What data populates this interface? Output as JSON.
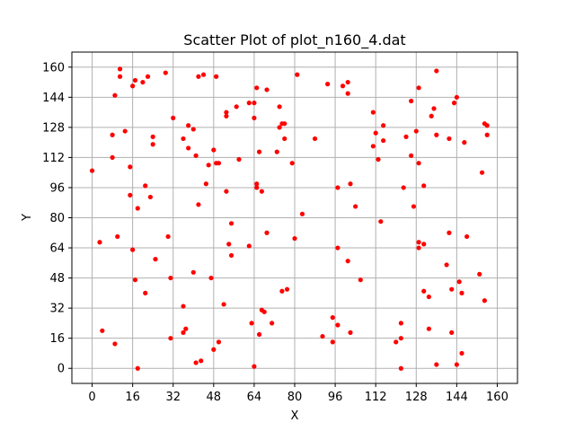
{
  "chart_data": {
    "type": "scatter",
    "title": "Scatter Plot of plot_n160_4.dat",
    "xlabel": "X",
    "ylabel": "Y",
    "xlim": [
      -8,
      168
    ],
    "ylim": [
      -8,
      168
    ],
    "xticks": [
      0,
      16,
      32,
      48,
      64,
      80,
      96,
      112,
      128,
      144,
      160
    ],
    "yticks": [
      0,
      16,
      32,
      48,
      64,
      80,
      96,
      112,
      128,
      144,
      160
    ],
    "grid": true,
    "marker_color": "#ff0000",
    "points": [
      [
        0,
        105
      ],
      [
        3,
        67
      ],
      [
        4,
        20
      ],
      [
        9,
        13
      ],
      [
        8,
        112
      ],
      [
        8,
        124
      ],
      [
        9,
        145
      ],
      [
        10,
        70
      ],
      [
        11,
        155
      ],
      [
        11,
        159
      ],
      [
        13,
        126
      ],
      [
        15,
        107
      ],
      [
        15,
        92
      ],
      [
        16,
        63
      ],
      [
        16,
        150
      ],
      [
        17,
        47
      ],
      [
        17,
        153
      ],
      [
        18,
        0
      ],
      [
        18,
        85
      ],
      [
        20,
        152
      ],
      [
        21,
        97
      ],
      [
        21,
        40
      ],
      [
        22,
        155
      ],
      [
        23,
        91
      ],
      [
        24,
        119
      ],
      [
        24,
        123
      ],
      [
        25,
        58
      ],
      [
        29,
        157
      ],
      [
        30,
        70
      ],
      [
        31,
        48
      ],
      [
        31,
        16
      ],
      [
        32,
        133
      ],
      [
        36,
        122
      ],
      [
        36,
        33
      ],
      [
        36,
        19
      ],
      [
        37,
        21
      ],
      [
        38,
        129
      ],
      [
        38,
        117
      ],
      [
        40,
        51
      ],
      [
        40,
        127
      ],
      [
        41,
        113
      ],
      [
        41,
        3
      ],
      [
        42,
        87
      ],
      [
        42,
        155
      ],
      [
        43,
        4
      ],
      [
        44,
        156
      ],
      [
        45,
        98
      ],
      [
        46,
        108
      ],
      [
        47,
        48
      ],
      [
        48,
        10
      ],
      [
        48,
        116
      ],
      [
        49,
        155
      ],
      [
        49,
        109
      ],
      [
        50,
        109
      ],
      [
        50,
        14
      ],
      [
        52,
        34
      ],
      [
        53,
        94
      ],
      [
        53,
        134
      ],
      [
        53,
        136
      ],
      [
        54,
        66
      ],
      [
        55,
        60
      ],
      [
        55,
        77
      ],
      [
        57,
        139
      ],
      [
        58,
        111
      ],
      [
        62,
        65
      ],
      [
        62,
        141
      ],
      [
        63,
        24
      ],
      [
        64,
        133
      ],
      [
        64,
        141
      ],
      [
        64,
        1
      ],
      [
        65,
        98
      ],
      [
        65,
        149
      ],
      [
        65,
        96
      ],
      [
        66,
        115
      ],
      [
        66,
        18
      ],
      [
        67,
        94
      ],
      [
        67,
        31
      ],
      [
        68,
        30
      ],
      [
        69,
        148
      ],
      [
        69,
        72
      ],
      [
        71,
        24
      ],
      [
        73,
        115
      ],
      [
        74,
        139
      ],
      [
        74,
        128
      ],
      [
        75,
        130
      ],
      [
        75,
        41
      ],
      [
        76,
        122
      ],
      [
        76,
        130
      ],
      [
        77,
        42
      ],
      [
        79,
        109
      ],
      [
        80,
        69
      ],
      [
        81,
        156
      ],
      [
        83,
        82
      ],
      [
        88,
        122
      ],
      [
        91,
        17
      ],
      [
        93,
        151
      ],
      [
        95,
        27
      ],
      [
        95,
        14
      ],
      [
        97,
        64
      ],
      [
        97,
        23
      ],
      [
        97,
        96
      ],
      [
        99,
        150
      ],
      [
        101,
        152
      ],
      [
        101,
        57
      ],
      [
        101,
        146
      ],
      [
        102,
        98
      ],
      [
        102,
        19
      ],
      [
        104,
        86
      ],
      [
        106,
        47
      ],
      [
        111,
        118
      ],
      [
        111,
        136
      ],
      [
        112,
        125
      ],
      [
        113,
        111
      ],
      [
        114,
        78
      ],
      [
        115,
        121
      ],
      [
        115,
        129
      ],
      [
        120,
        14
      ],
      [
        122,
        0
      ],
      [
        122,
        16
      ],
      [
        122,
        24
      ],
      [
        123,
        96
      ],
      [
        124,
        123
      ],
      [
        126,
        113
      ],
      [
        126,
        142
      ],
      [
        127,
        86
      ],
      [
        128,
        126
      ],
      [
        129,
        149
      ],
      [
        129,
        64
      ],
      [
        129,
        109
      ],
      [
        129,
        67
      ],
      [
        131,
        97
      ],
      [
        131,
        66
      ],
      [
        131,
        41
      ],
      [
        133,
        38
      ],
      [
        133,
        21
      ],
      [
        134,
        134
      ],
      [
        135,
        138
      ],
      [
        136,
        2
      ],
      [
        136,
        158
      ],
      [
        136,
        124
      ],
      [
        140,
        55
      ],
      [
        141,
        72
      ],
      [
        141,
        122
      ],
      [
        142,
        42
      ],
      [
        142,
        19
      ],
      [
        143,
        141
      ],
      [
        144,
        2
      ],
      [
        144,
        144
      ],
      [
        145,
        46
      ],
      [
        146,
        40
      ],
      [
        146,
        8
      ],
      [
        147,
        120
      ],
      [
        148,
        70
      ],
      [
        153,
        50
      ],
      [
        154,
        104
      ],
      [
        155,
        130
      ],
      [
        155,
        36
      ],
      [
        156,
        129
      ],
      [
        156,
        124
      ]
    ]
  }
}
